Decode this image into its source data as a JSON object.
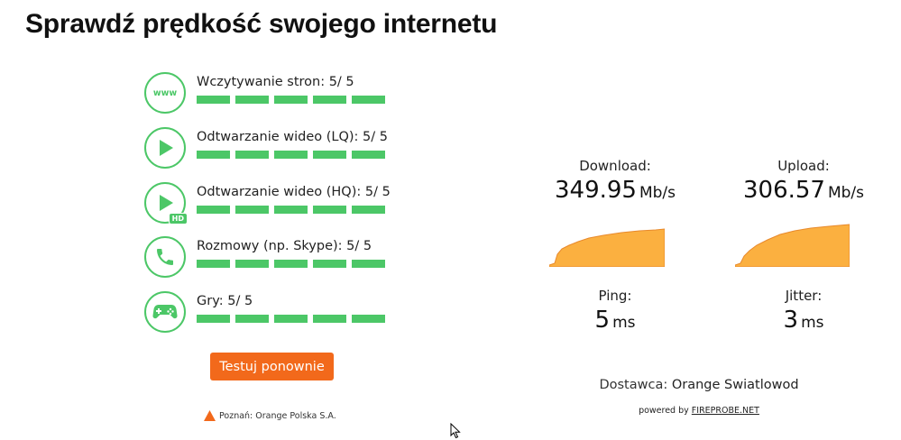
{
  "page": {
    "title": "Sprawdź prędkość swojego internetu"
  },
  "categories": [
    {
      "icon": "www-icon",
      "label": "Wczytywanie stron: 5/ 5",
      "score": 5,
      "max": 5
    },
    {
      "icon": "play-icon",
      "label": "Odtwarzanie wideo (LQ): 5/ 5",
      "score": 5,
      "max": 5
    },
    {
      "icon": "play-hd-icon",
      "label": "Odtwarzanie wideo (HQ): 5/ 5",
      "score": 5,
      "max": 5,
      "badge": "HD"
    },
    {
      "icon": "phone-icon",
      "label": "Rozmowy (np. Skype): 5/ 5",
      "score": 5,
      "max": 5
    },
    {
      "icon": "gamepad-icon",
      "label": "Gry: 5/ 5",
      "score": 5,
      "max": 5
    }
  ],
  "retest": {
    "label": "Testuj ponownie"
  },
  "location": {
    "icon": "triangle-icon",
    "text": "Poznań: Orange Polska S.A."
  },
  "results": {
    "download": {
      "label": "Download:",
      "value": "349.95",
      "unit": "Mb/s"
    },
    "upload": {
      "label": "Upload:",
      "value": "306.57",
      "unit": "Mb/s"
    },
    "ping": {
      "label": "Ping:",
      "value": "5",
      "unit": "ms"
    },
    "jitter": {
      "label": "Jitter:",
      "value": "3",
      "unit": "ms"
    }
  },
  "provider": {
    "prefix": "Dostawca:",
    "name": "Orange Swiatlowod"
  },
  "powered": {
    "prefix": "powered by",
    "link": "FIREPROBE.NET"
  },
  "colors": {
    "accent_green": "#4cc767",
    "button_orange": "#f2691b",
    "graph_fill": "#fbb040",
    "graph_stroke": "#e8892b"
  }
}
